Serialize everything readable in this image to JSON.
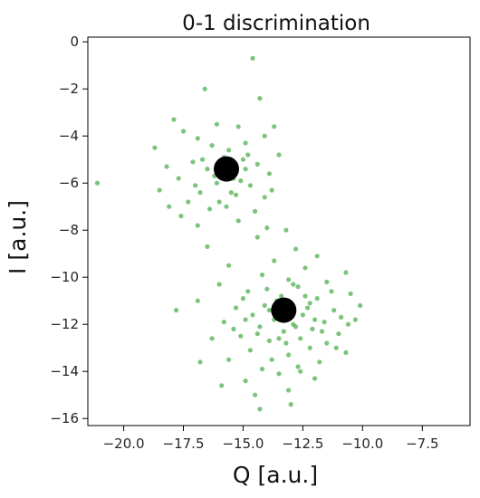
{
  "chart_data": {
    "type": "scatter",
    "title": "0-1 discrimination",
    "xlabel": "Q [a.u.]",
    "ylabel": "I [a.u.]",
    "xlim": [
      -21.5,
      -5.5
    ],
    "ylim": [
      -16.3,
      0.2
    ],
    "x_ticks": [
      -20.0,
      -17.5,
      -15.0,
      -12.5,
      -10.0,
      -7.5
    ],
    "x_tick_labels": [
      "−20.0",
      "−17.5",
      "−15.0",
      "−12.5",
      "−10.0",
      "−7.5"
    ],
    "y_ticks": [
      0,
      -2,
      -4,
      -6,
      -8,
      -10,
      -12,
      -14,
      -16
    ],
    "y_tick_labels": [
      "0",
      "−2",
      "−4",
      "−6",
      "−8",
      "−10",
      "−12",
      "−14",
      "−16"
    ],
    "grid": false,
    "colors": {
      "points": "#2ca02c",
      "centroids": "#000000",
      "axes": "#000000"
    },
    "series": [
      {
        "marker": "small-dot",
        "points": [
          [
            -14.6,
            -0.7
          ],
          [
            -16.6,
            -2.0
          ],
          [
            -14.3,
            -2.4
          ],
          [
            -17.9,
            -3.3
          ],
          [
            -16.1,
            -3.5
          ],
          [
            -15.2,
            -3.6
          ],
          [
            -13.7,
            -3.6
          ],
          [
            -17.5,
            -3.8
          ],
          [
            -14.1,
            -4.0
          ],
          [
            -16.9,
            -4.1
          ],
          [
            -14.9,
            -4.3
          ],
          [
            -18.7,
            -4.5
          ],
          [
            -16.3,
            -4.4
          ],
          [
            -15.6,
            -4.6
          ],
          [
            -13.5,
            -4.8
          ],
          [
            -17.1,
            -5.1
          ],
          [
            -15.0,
            -5.0
          ],
          [
            -14.4,
            -5.2
          ],
          [
            -16.5,
            -5.4
          ],
          [
            -18.2,
            -5.3
          ],
          [
            -13.9,
            -5.6
          ],
          [
            -15.4,
            -5.8
          ],
          [
            -17.7,
            -5.8
          ],
          [
            -16.1,
            -6.0
          ],
          [
            -14.7,
            -6.1
          ],
          [
            -18.5,
            -6.3
          ],
          [
            -16.8,
            -6.4
          ],
          [
            -15.3,
            -6.5
          ],
          [
            -14.1,
            -6.6
          ],
          [
            -17.3,
            -6.8
          ],
          [
            -15.7,
            -7.0
          ],
          [
            -16.4,
            -7.1
          ],
          [
            -14.5,
            -7.2
          ],
          [
            -17.6,
            -7.4
          ],
          [
            -15.2,
            -7.6
          ],
          [
            -16.9,
            -7.8
          ],
          [
            -14.0,
            -7.9
          ],
          [
            -15.9,
            -5.2
          ],
          [
            -15.1,
            -5.9
          ],
          [
            -16.2,
            -5.7
          ],
          [
            -14.8,
            -4.8
          ],
          [
            -16.7,
            -5.0
          ],
          [
            -15.5,
            -6.4
          ],
          [
            -17.0,
            -6.1
          ],
          [
            -13.8,
            -6.3
          ],
          [
            -18.1,
            -7.0
          ],
          [
            -16.0,
            -6.8
          ],
          [
            -14.9,
            -5.4
          ],
          [
            -15.8,
            -4.9
          ],
          [
            -21.1,
            -6.0
          ],
          [
            -13.2,
            -8.0
          ],
          [
            -14.4,
            -8.3
          ],
          [
            -12.8,
            -8.8
          ],
          [
            -16.5,
            -8.7
          ],
          [
            -11.9,
            -9.1
          ],
          [
            -13.7,
            -9.3
          ],
          [
            -15.6,
            -9.5
          ],
          [
            -12.4,
            -9.6
          ],
          [
            -10.7,
            -9.8
          ],
          [
            -14.2,
            -9.9
          ],
          [
            -13.1,
            -10.1
          ],
          [
            -11.5,
            -10.2
          ],
          [
            -16.0,
            -10.3
          ],
          [
            -12.7,
            -10.4
          ],
          [
            -14.8,
            -10.6
          ],
          [
            -10.5,
            -10.7
          ],
          [
            -13.4,
            -10.8
          ],
          [
            -11.9,
            -10.9
          ],
          [
            -16.9,
            -11.0
          ],
          [
            -12.2,
            -11.1
          ],
          [
            -14.1,
            -11.2
          ],
          [
            -10.1,
            -11.2
          ],
          [
            -15.3,
            -11.3
          ],
          [
            -11.2,
            -11.4
          ],
          [
            -13.0,
            -11.5
          ],
          [
            -17.8,
            -11.4
          ],
          [
            -12.5,
            -11.6
          ],
          [
            -14.6,
            -11.6
          ],
          [
            -10.9,
            -11.7
          ],
          [
            -13.7,
            -11.8
          ],
          [
            -11.6,
            -11.9
          ],
          [
            -15.8,
            -11.9
          ],
          [
            -12.9,
            -12.0
          ],
          [
            -10.3,
            -11.8
          ],
          [
            -14.3,
            -12.1
          ],
          [
            -12.1,
            -12.2
          ],
          [
            -13.3,
            -12.3
          ],
          [
            -11.0,
            -12.4
          ],
          [
            -15.1,
            -12.5
          ],
          [
            -12.6,
            -12.6
          ],
          [
            -16.3,
            -12.6
          ],
          [
            -13.9,
            -12.7
          ],
          [
            -11.5,
            -12.8
          ],
          [
            -12.2,
            -13.0
          ],
          [
            -14.7,
            -13.1
          ],
          [
            -10.7,
            -13.2
          ],
          [
            -13.1,
            -13.3
          ],
          [
            -15.6,
            -13.5
          ],
          [
            -11.8,
            -13.6
          ],
          [
            -12.7,
            -13.8
          ],
          [
            -16.8,
            -13.6
          ],
          [
            -14.2,
            -13.9
          ],
          [
            -13.5,
            -14.1
          ],
          [
            -12.0,
            -14.3
          ],
          [
            -14.9,
            -14.4
          ],
          [
            -15.9,
            -14.6
          ],
          [
            -13.1,
            -14.8
          ],
          [
            -14.5,
            -15.0
          ],
          [
            -13.0,
            -15.4
          ],
          [
            -14.3,
            -15.6
          ],
          [
            -12.3,
            -11.3
          ],
          [
            -13.6,
            -11.0
          ],
          [
            -12.8,
            -12.1
          ],
          [
            -13.9,
            -11.4
          ],
          [
            -12.4,
            -10.8
          ],
          [
            -14.4,
            -12.4
          ],
          [
            -11.3,
            -10.6
          ],
          [
            -13.2,
            -12.8
          ],
          [
            -11.7,
            -12.3
          ],
          [
            -15.0,
            -10.9
          ],
          [
            -12.0,
            -11.8
          ],
          [
            -13.5,
            -12.6
          ],
          [
            -14.0,
            -10.5
          ],
          [
            -11.1,
            -13.0
          ],
          [
            -12.9,
            -10.3
          ],
          [
            -15.4,
            -12.2
          ],
          [
            -10.6,
            -12.0
          ],
          [
            -13.8,
            -13.5
          ],
          [
            -12.6,
            -14.0
          ],
          [
            -14.9,
            -11.8
          ]
        ]
      },
      {
        "marker": "large-dot",
        "points": [
          [
            -15.7,
            -5.4
          ],
          [
            -13.3,
            -11.4
          ]
        ]
      }
    ]
  }
}
